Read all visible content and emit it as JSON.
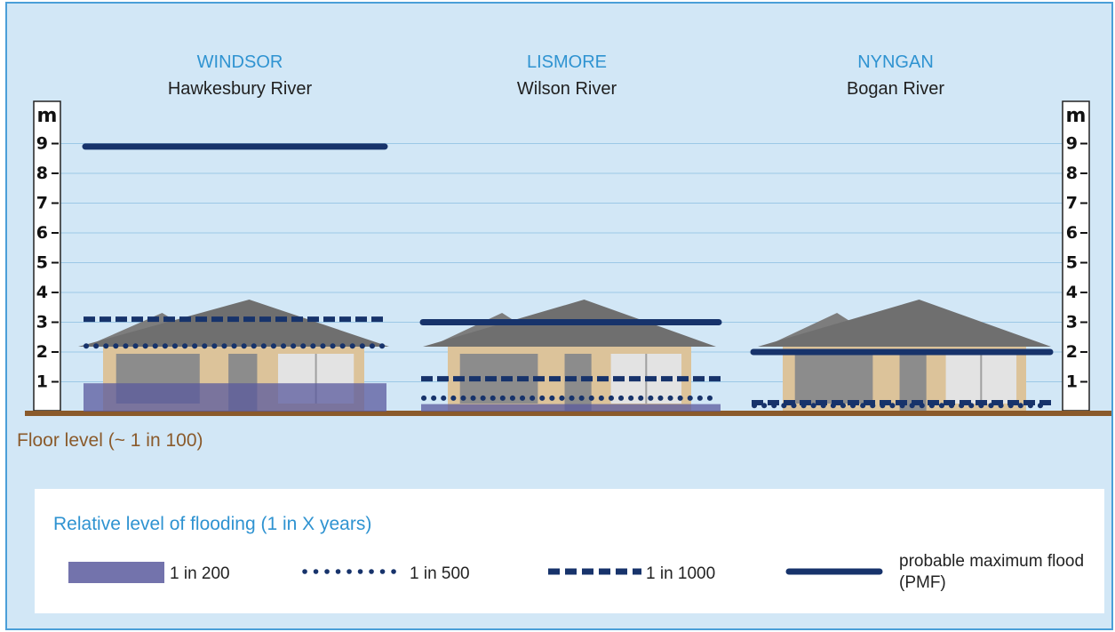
{
  "sites": [
    {
      "town": "WINDSOR",
      "river": "Hawkesbury River",
      "levels": {
        "pmf": 8.9,
        "one_in_1000": 3.1,
        "one_in_500": 2.2,
        "one_in_200": 0.95
      }
    },
    {
      "town": "LISMORE",
      "river": "Wilson River",
      "levels": {
        "pmf": 3.0,
        "one_in_1000": 1.1,
        "one_in_500": 0.45,
        "one_in_200": 0.25
      }
    },
    {
      "town": "NYNGAN",
      "river": "Bogan River",
      "levels": {
        "pmf": 2.0,
        "one_in_1000": 0.3,
        "one_in_500": 0.2,
        "one_in_200": null
      }
    }
  ],
  "scale": {
    "unit": "m",
    "ticks": [
      "1",
      "2",
      "3",
      "4",
      "5",
      "6",
      "7",
      "8",
      "9"
    ]
  },
  "floor_label": "Floor level (~ 1 in 100)",
  "legend": {
    "title": "Relative level of flooding (1 in X years)",
    "items": [
      {
        "key": "one_in_200",
        "label": "1 in 200"
      },
      {
        "key": "one_in_500",
        "label": "1 in 500"
      },
      {
        "key": "one_in_1000",
        "label": "1 in 1000"
      },
      {
        "key": "pmf",
        "label": "probable maximum flood (PMF)"
      }
    ]
  },
  "colors": {
    "background": "#d2e7f6",
    "border": "#4a9fd8",
    "line": "#17336b",
    "flood_fill": "#5a5a9e",
    "ground": "#8a5a2b",
    "roof": "#6f6f6f",
    "wall": "#dcc39a",
    "window_dark": "#8c8c8c",
    "window_light": "#e3e3e3",
    "town": "#2f93d1",
    "floor_text": "#8a5a2b"
  }
}
